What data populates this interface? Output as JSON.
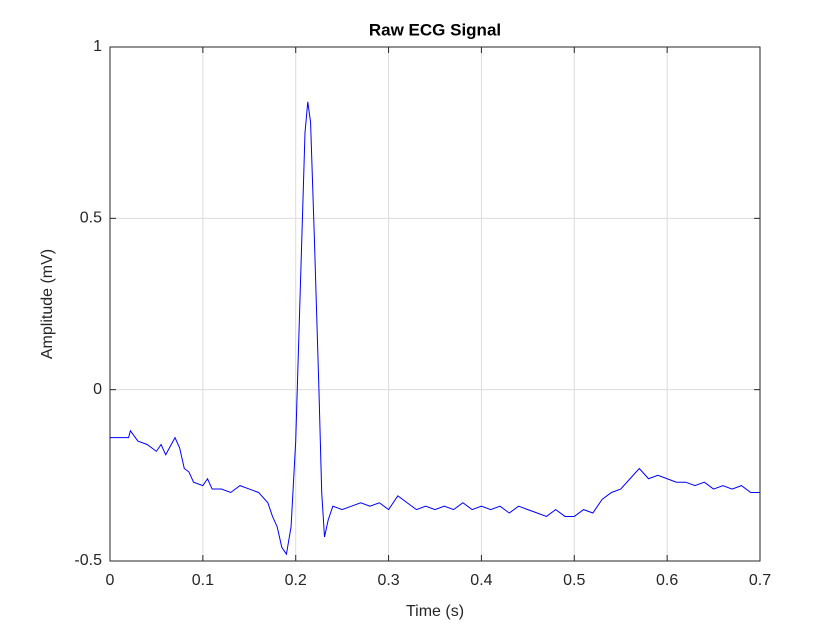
{
  "chart_data": {
    "type": "line",
    "title": "Raw ECG Signal",
    "xlabel": "Time (s)",
    "ylabel": "Amplitude (mV)",
    "x": [
      0,
      0.02,
      0.022,
      0.03,
      0.04,
      0.05,
      0.055,
      0.06,
      0.07,
      0.075,
      0.08,
      0.085,
      0.09,
      0.1,
      0.105,
      0.11,
      0.12,
      0.13,
      0.14,
      0.15,
      0.16,
      0.17,
      0.175,
      0.18,
      0.185,
      0.19,
      0.195,
      0.2,
      0.205,
      0.21,
      0.213,
      0.216,
      0.22,
      0.225,
      0.228,
      0.231,
      0.235,
      0.24,
      0.25,
      0.26,
      0.27,
      0.28,
      0.29,
      0.3,
      0.31,
      0.32,
      0.33,
      0.34,
      0.35,
      0.36,
      0.37,
      0.38,
      0.39,
      0.4,
      0.41,
      0.42,
      0.43,
      0.44,
      0.45,
      0.46,
      0.47,
      0.48,
      0.49,
      0.5,
      0.51,
      0.52,
      0.53,
      0.54,
      0.55,
      0.56,
      0.57,
      0.58,
      0.59,
      0.6,
      0.61,
      0.62,
      0.63,
      0.64,
      0.65,
      0.66,
      0.67,
      0.68,
      0.69,
      0.7
    ],
    "values": [
      -0.14,
      -0.14,
      -0.12,
      -0.15,
      -0.16,
      -0.18,
      -0.16,
      -0.19,
      -0.14,
      -0.17,
      -0.23,
      -0.24,
      -0.27,
      -0.28,
      -0.26,
      -0.29,
      -0.29,
      -0.3,
      -0.28,
      -0.29,
      -0.3,
      -0.33,
      -0.37,
      -0.4,
      -0.46,
      -0.48,
      -0.4,
      -0.15,
      0.3,
      0.75,
      0.84,
      0.78,
      0.45,
      0.0,
      -0.3,
      -0.43,
      -0.38,
      -0.34,
      -0.35,
      -0.34,
      -0.33,
      -0.34,
      -0.33,
      -0.35,
      -0.31,
      -0.33,
      -0.35,
      -0.34,
      -0.35,
      -0.34,
      -0.35,
      -0.33,
      -0.35,
      -0.34,
      -0.35,
      -0.34,
      -0.36,
      -0.34,
      -0.35,
      -0.36,
      -0.37,
      -0.35,
      -0.37,
      -0.37,
      -0.35,
      -0.36,
      -0.32,
      -0.3,
      -0.29,
      -0.26,
      -0.23,
      -0.26,
      -0.25,
      -0.26,
      -0.27,
      -0.27,
      -0.28,
      -0.27,
      -0.29,
      -0.28,
      -0.29,
      -0.28,
      -0.3,
      -0.3
    ],
    "color": "#0000ff",
    "xlim": [
      0,
      0.7
    ],
    "xticks": [
      0,
      0.1,
      0.2,
      0.3,
      0.4,
      0.5,
      0.6,
      0.7
    ],
    "ylim": [
      -0.5,
      1
    ],
    "yticks": [
      -0.5,
      0,
      0.5,
      1
    ],
    "grid": true
  }
}
